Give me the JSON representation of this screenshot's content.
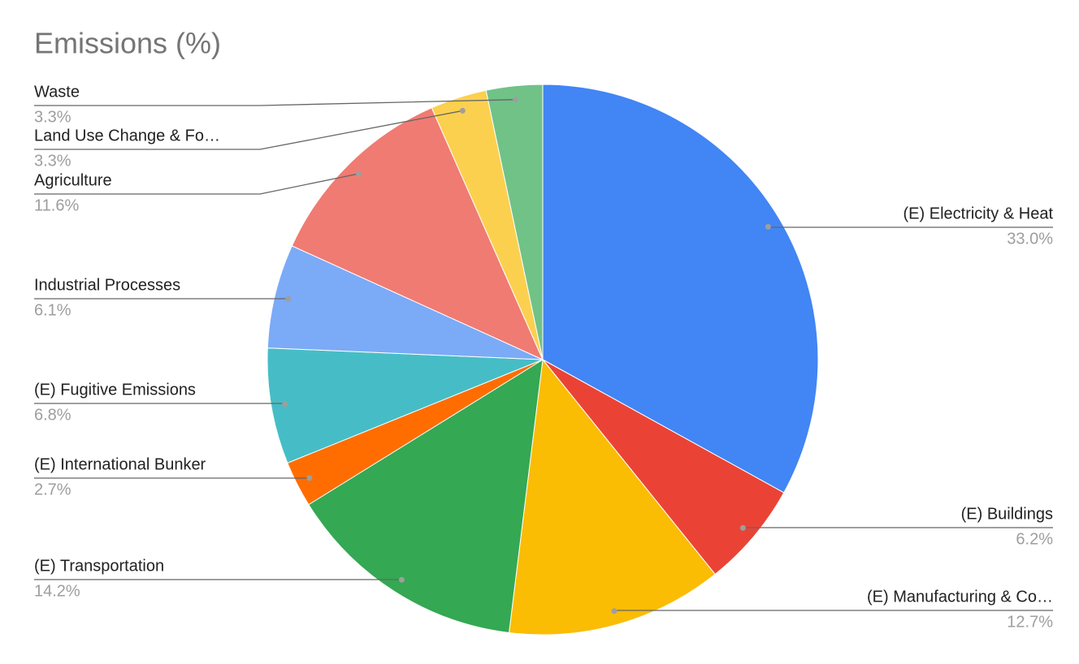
{
  "chart_data": {
    "type": "pie",
    "title": "Emissions (%)",
    "categories": [
      "(E) Electricity & Heat",
      "(E) Buildings",
      "(E) Manufacturing & Co…",
      "(E) Transportation",
      "(E) International Bunker",
      "(E) Fugitive Emissions",
      "Industrial Processes",
      "Agriculture",
      "Land Use Change & Fo…",
      "Waste"
    ],
    "values": [
      33.0,
      6.2,
      12.7,
      14.2,
      2.7,
      6.8,
      6.1,
      11.6,
      3.3,
      3.3
    ],
    "value_labels": [
      "33.0%",
      "6.2%",
      "12.7%",
      "14.2%",
      "2.7%",
      "6.8%",
      "6.1%",
      "11.6%",
      "3.3%",
      "3.3%"
    ],
    "colors": [
      "#4285f4",
      "#ea4335",
      "#fbbc04",
      "#34a853",
      "#ff6d01",
      "#46bdc6",
      "#7baaf7",
      "#f07b72",
      "#fcd04f",
      "#71c287"
    ]
  }
}
